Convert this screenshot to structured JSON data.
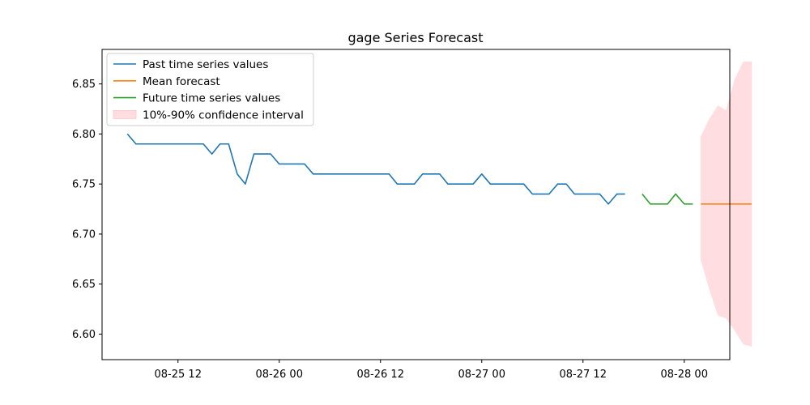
{
  "chart_data": {
    "type": "line",
    "title": "gage Series Forecast",
    "xlabel": "",
    "ylabel": "",
    "xlim": [
      2.0,
      14.4
    ],
    "ylim": [
      6.5745,
      6.8845
    ],
    "x_ticks": [
      {
        "value": 3.5,
        "label": "08-25 12"
      },
      {
        "value": 5.5,
        "label": "08-26 00"
      },
      {
        "value": 7.5,
        "label": "08-26 12"
      },
      {
        "value": 9.5,
        "label": "08-27 00"
      },
      {
        "value": 11.5,
        "label": "08-27 12"
      },
      {
        "value": 13.5,
        "label": "08-28 00"
      }
    ],
    "y_ticks": [
      {
        "value": 6.6,
        "label": "6.60"
      },
      {
        "value": 6.65,
        "label": "6.65"
      },
      {
        "value": 6.7,
        "label": "6.70"
      },
      {
        "value": 6.75,
        "label": "6.75"
      },
      {
        "value": 6.8,
        "label": "6.80"
      },
      {
        "value": 6.85,
        "label": "6.85"
      }
    ],
    "grid": false,
    "legend_position": "top-left",
    "series": [
      {
        "name": "Past time series values",
        "color": "#1f77b4",
        "x": [
          2.5,
          2.67,
          2.83,
          3.0,
          3.17,
          3.33,
          3.5,
          3.67,
          3.83,
          4.0,
          4.17,
          4.33,
          4.5,
          4.67,
          4.83,
          5.0,
          5.17,
          5.33,
          5.5,
          5.67,
          5.83,
          6.0,
          6.17,
          6.33,
          6.5,
          6.67,
          6.83,
          7.0,
          7.17,
          7.33,
          7.5,
          7.67,
          7.83,
          8.0,
          8.17,
          8.33,
          8.5,
          8.67,
          8.83,
          9.0,
          9.17,
          9.33,
          9.5,
          9.67,
          9.83,
          10.0,
          10.17,
          10.33,
          10.5,
          10.67,
          10.83,
          11.0,
          11.17,
          11.33,
          11.5,
          11.67,
          11.83,
          12.0,
          12.17,
          12.33
        ],
        "values": [
          6.8,
          6.79,
          6.79,
          6.79,
          6.79,
          6.79,
          6.79,
          6.79,
          6.79,
          6.79,
          6.78,
          6.79,
          6.79,
          6.76,
          6.75,
          6.78,
          6.78,
          6.78,
          6.77,
          6.77,
          6.77,
          6.77,
          6.76,
          6.76,
          6.76,
          6.76,
          6.76,
          6.76,
          6.76,
          6.76,
          6.76,
          6.76,
          6.75,
          6.75,
          6.75,
          6.76,
          6.76,
          6.76,
          6.75,
          6.75,
          6.75,
          6.75,
          6.76,
          6.75,
          6.75,
          6.75,
          6.75,
          6.75,
          6.74,
          6.74,
          6.74,
          6.75,
          6.75,
          6.74,
          6.74,
          6.74,
          6.74,
          6.73,
          6.74,
          6.74
        ]
      },
      {
        "name": "Future time series values",
        "color": "#2ca02c",
        "x": [
          12.67,
          12.83,
          13.0,
          13.17,
          13.33,
          13.5,
          13.67
        ],
        "values": [
          6.74,
          6.73,
          6.73,
          6.73,
          6.74,
          6.73,
          6.73
        ]
      },
      {
        "name": "Mean forecast",
        "color": "#ff7f0e",
        "x": [
          13.83,
          14.0,
          14.17,
          14.33,
          14.5,
          14.67,
          14.83
        ],
        "values": [
          6.73,
          6.73,
          6.73,
          6.73,
          6.73,
          6.73,
          6.73
        ]
      }
    ],
    "confidence_interval": {
      "name": "10%-90% confidence interval",
      "color": "#ffdde0",
      "x": [
        13.83,
        14.0,
        14.17,
        14.33,
        14.5,
        14.67,
        14.83
      ],
      "lower": [
        6.675,
        6.645,
        6.619,
        6.616,
        6.604,
        6.59,
        6.588
      ],
      "upper": [
        6.797,
        6.815,
        6.828,
        6.823,
        6.854,
        6.872,
        6.872
      ]
    },
    "legend": [
      {
        "label": "Past time series values",
        "kind": "line",
        "color": "#1f77b4"
      },
      {
        "label": "Mean forecast",
        "kind": "line",
        "color": "#ff7f0e"
      },
      {
        "label": "Future time series values",
        "kind": "line",
        "color": "#2ca02c"
      },
      {
        "label": "10%-90% confidence interval",
        "kind": "patch",
        "color": "#ffdde0"
      }
    ]
  }
}
